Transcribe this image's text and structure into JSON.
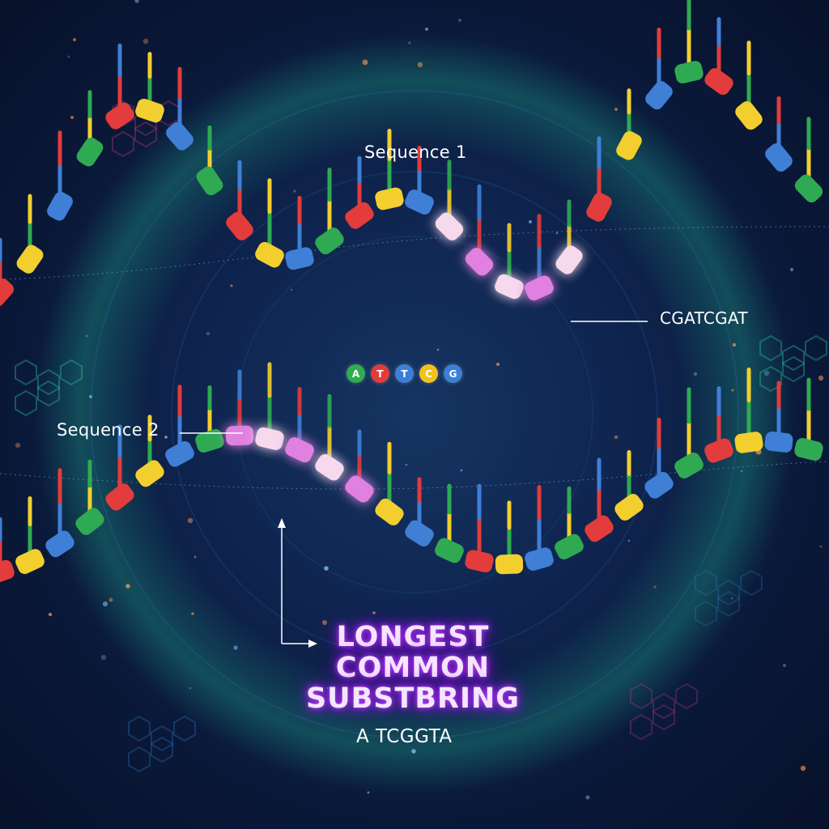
{
  "labels": {
    "sequence1": "Sequence 1",
    "sequence2": "Sequence 2",
    "match": "CGATCGAT"
  },
  "legend": [
    {
      "letter": "A",
      "color": "#2fae4f"
    },
    {
      "letter": "T",
      "color": "#e53a3a"
    },
    {
      "letter": "T",
      "color": "#3b7fd8"
    },
    {
      "letter": "C",
      "color": "#f2c21b"
    },
    {
      "letter": "G",
      "color": "#3b7fd8"
    }
  ],
  "title": {
    "line1": "LONGEST",
    "line2": "COMMON",
    "line3": "SUBSTBRING"
  },
  "result": "A TCGGTA",
  "colors": {
    "red": "#e23c3c",
    "yellow": "#f2cf2e",
    "blue": "#3f7fd6",
    "green": "#2faa52",
    "glow": "#c44cff",
    "highlight": "#f7d9ee"
  }
}
